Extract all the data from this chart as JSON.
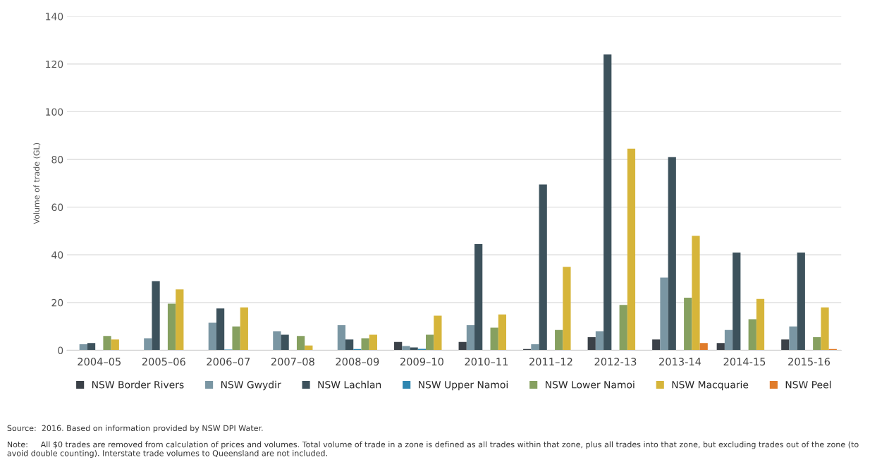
{
  "chart_data": {
    "type": "bar",
    "ylabel": "Volume of trade (GL)",
    "categories": [
      "2004–05",
      "2005–06",
      "2006–07",
      "2007–08",
      "2008–09",
      "2009–10",
      "2010–11",
      "2011–12",
      "2012-13",
      "2013-14",
      "2014-15",
      "2015-16"
    ],
    "series": [
      {
        "name": "NSW Border Rivers",
        "color": "#3b4148",
        "values": [
          0,
          0,
          0,
          0,
          0,
          3.5,
          3.5,
          0.5,
          5.5,
          4.5,
          3,
          4.5
        ]
      },
      {
        "name": "NSW Gwydir",
        "color": "#7a96a3",
        "values": [
          2.5,
          5,
          11.5,
          8,
          10.5,
          1.8,
          10.5,
          2.5,
          8,
          30.5,
          8.5,
          10
        ]
      },
      {
        "name": "NSW Lachlan",
        "color": "#3d525c",
        "values": [
          3,
          29,
          17.5,
          6.5,
          4.5,
          1.2,
          44.5,
          69.5,
          124,
          81,
          41,
          41
        ]
      },
      {
        "name": "NSW Upper Namoi",
        "color": "#2e86b0",
        "values": [
          0,
          0,
          0.3,
          0,
          0.5,
          0.6,
          0,
          0,
          0,
          0,
          0,
          0
        ]
      },
      {
        "name": "NSW Lower Namoi",
        "color": "#86a060",
        "values": [
          6,
          19.5,
          10,
          6,
          5,
          6.5,
          9.5,
          8.5,
          19,
          22,
          13,
          5.5
        ]
      },
      {
        "name": "NSW Macquarie",
        "color": "#d6b53a",
        "values": [
          4.5,
          25.5,
          18,
          2,
          6.5,
          14.5,
          15,
          35,
          84.5,
          48,
          21.5,
          18
        ]
      },
      {
        "name": "NSW Peel",
        "color": "#e07b2a",
        "values": [
          0,
          0,
          0,
          0,
          0,
          0,
          0,
          0,
          0,
          3,
          0,
          0.5
        ]
      }
    ],
    "ylim": [
      0,
      140
    ],
    "yticks": [
      0,
      20,
      40,
      60,
      80,
      100,
      120,
      140
    ],
    "grid": "y",
    "legend": "bottom",
    "annotations": [
      "Source:  2016. Based on information provided by NSW DPI Water.",
      "Note:     All $0 trades are removed from calculation of prices and volumes. Total volume of trade in a zone is defined as all trades within that zone, plus all trades into that zone, but excluding trades out of the zone (to avoid double counting). Interstate trade volumes to Queensland are not included."
    ]
  }
}
